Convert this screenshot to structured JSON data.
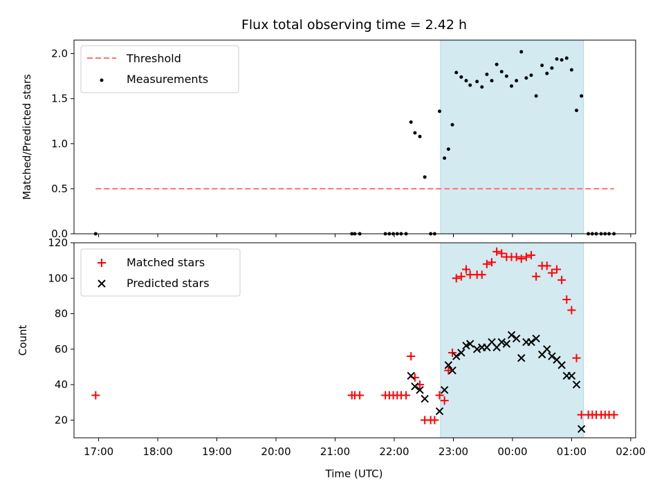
{
  "chart_data": [
    {
      "type": "scatter",
      "title": "Flux total observing time = 2.42 h",
      "xlabel": "",
      "ylabel": "Matched/Predicted stars",
      "xlim": [
        "16:35",
        "02:05"
      ],
      "ylim": [
        0,
        2.15
      ],
      "yticks": [
        "0.0",
        "0.5",
        "1.0",
        "1.5",
        "2.0"
      ],
      "shaded_region": [
        "22:47",
        "01:12"
      ],
      "shaded_color": "#d2eaf0",
      "legend_position": "top-left",
      "threshold": {
        "name": "Threshold",
        "value": 0.5,
        "x_range": [
          "16:57",
          "01:43"
        ],
        "color": "#ff7070"
      },
      "series": [
        {
          "name": "Measurements",
          "color": "#000000",
          "points": [
            [
              "16:57",
              0.0
            ],
            [
              "21:17",
              0.0
            ],
            [
              "21:20",
              0.0
            ],
            [
              "21:25",
              0.0
            ],
            [
              "21:51",
              0.0
            ],
            [
              "21:55",
              0.0
            ],
            [
              "21:59",
              0.0
            ],
            [
              "22:03",
              0.0
            ],
            [
              "22:07",
              0.0
            ],
            [
              "22:12",
              0.0
            ],
            [
              "22:17",
              1.24
            ],
            [
              "22:21",
              1.12
            ],
            [
              "22:26",
              1.08
            ],
            [
              "22:31",
              0.63
            ],
            [
              "22:37",
              0.0
            ],
            [
              "22:41",
              0.0
            ],
            [
              "22:46",
              1.36
            ],
            [
              "22:51",
              0.84
            ],
            [
              "22:55",
              0.94
            ],
            [
              "22:59",
              1.21
            ],
            [
              "23:03",
              1.79
            ],
            [
              "23:08",
              1.74
            ],
            [
              "23:13",
              1.7
            ],
            [
              "23:17",
              1.65
            ],
            [
              "23:24",
              1.69
            ],
            [
              "23:29",
              1.63
            ],
            [
              "23:34",
              1.77
            ],
            [
              "23:39",
              1.7
            ],
            [
              "23:44",
              1.88
            ],
            [
              "23:49",
              1.8
            ],
            [
              "23:54",
              1.75
            ],
            [
              "23:59",
              1.64
            ],
            [
              "00:04",
              1.7
            ],
            [
              "00:09",
              2.02
            ],
            [
              "00:14",
              1.73
            ],
            [
              "00:19",
              1.76
            ],
            [
              "00:24",
              1.53
            ],
            [
              "00:30",
              1.87
            ],
            [
              "00:35",
              1.78
            ],
            [
              "00:40",
              1.84
            ],
            [
              "00:45",
              1.94
            ],
            [
              "00:50",
              1.93
            ],
            [
              "00:55",
              1.95
            ],
            [
              "01:00",
              1.82
            ],
            [
              "01:05",
              1.37
            ],
            [
              "01:10",
              1.53
            ],
            [
              "01:17",
              0.0
            ],
            [
              "01:21",
              0.0
            ],
            [
              "01:25",
              0.0
            ],
            [
              "01:30",
              0.0
            ],
            [
              "01:34",
              0.0
            ],
            [
              "01:38",
              0.0
            ],
            [
              "01:43",
              0.0
            ]
          ]
        }
      ]
    },
    {
      "type": "scatter",
      "title": "",
      "xlabel": "Time (UTC)",
      "ylabel": "Count",
      "xlim": [
        "16:35",
        "02:05"
      ],
      "ylim": [
        10,
        120
      ],
      "yticks": [
        "20",
        "40",
        "60",
        "80",
        "100",
        "120"
      ],
      "xticks": [
        "17:00",
        "18:00",
        "19:00",
        "20:00",
        "21:00",
        "22:00",
        "23:00",
        "00:00",
        "01:00",
        "02:00"
      ],
      "shaded_region": [
        "22:47",
        "01:12"
      ],
      "shaded_color": "#d2eaf0",
      "legend_position": "top-left",
      "series": [
        {
          "name": "Matched stars",
          "color": "#ff0000",
          "marker": "plus",
          "points": [
            [
              "16:57",
              34
            ],
            [
              "21:17",
              34
            ],
            [
              "21:20",
              34
            ],
            [
              "21:25",
              34
            ],
            [
              "21:51",
              34
            ],
            [
              "21:55",
              34
            ],
            [
              "21:59",
              34
            ],
            [
              "22:03",
              34
            ],
            [
              "22:07",
              34
            ],
            [
              "22:12",
              34
            ],
            [
              "22:17",
              56
            ],
            [
              "22:21",
              44
            ],
            [
              "22:26",
              40
            ],
            [
              "22:31",
              20
            ],
            [
              "22:37",
              20
            ],
            [
              "22:41",
              20
            ],
            [
              "22:46",
              34
            ],
            [
              "22:51",
              31
            ],
            [
              "22:55",
              48
            ],
            [
              "22:59",
              58
            ],
            [
              "23:03",
              100
            ],
            [
              "23:08",
              101
            ],
            [
              "23:13",
              105
            ],
            [
              "23:17",
              102
            ],
            [
              "23:24",
              102
            ],
            [
              "23:29",
              102
            ],
            [
              "23:34",
              108
            ],
            [
              "23:39",
              109
            ],
            [
              "23:44",
              115
            ],
            [
              "23:49",
              114
            ],
            [
              "23:54",
              112
            ],
            [
              "23:59",
              112
            ],
            [
              "00:04",
              112
            ],
            [
              "00:09",
              111
            ],
            [
              "00:14",
              112
            ],
            [
              "00:19",
              113
            ],
            [
              "00:24",
              101
            ],
            [
              "00:30",
              107
            ],
            [
              "00:35",
              107
            ],
            [
              "00:40",
              103
            ],
            [
              "00:45",
              105
            ],
            [
              "00:50",
              99
            ],
            [
              "00:55",
              88
            ],
            [
              "01:00",
              82
            ],
            [
              "01:05",
              55
            ],
            [
              "01:10",
              23
            ],
            [
              "01:17",
              23
            ],
            [
              "01:21",
              23
            ],
            [
              "01:25",
              23
            ],
            [
              "01:30",
              23
            ],
            [
              "01:34",
              23
            ],
            [
              "01:38",
              23
            ],
            [
              "01:43",
              23
            ]
          ]
        },
        {
          "name": "Predicted stars",
          "color": "#000000",
          "marker": "x",
          "points": [
            [
              "22:17",
              45
            ],
            [
              "22:21",
              39
            ],
            [
              "22:26",
              37
            ],
            [
              "22:31",
              32
            ],
            [
              "22:46",
              25
            ],
            [
              "22:51",
              37
            ],
            [
              "22:55",
              51
            ],
            [
              "22:59",
              48
            ],
            [
              "23:03",
              56
            ],
            [
              "23:08",
              58
            ],
            [
              "23:13",
              62
            ],
            [
              "23:17",
              63
            ],
            [
              "23:24",
              60
            ],
            [
              "23:29",
              61
            ],
            [
              "23:34",
              61
            ],
            [
              "23:39",
              64
            ],
            [
              "23:44",
              61
            ],
            [
              "23:49",
              64
            ],
            [
              "23:54",
              63
            ],
            [
              "23:59",
              68
            ],
            [
              "00:04",
              66
            ],
            [
              "00:09",
              55
            ],
            [
              "00:14",
              64
            ],
            [
              "00:19",
              64
            ],
            [
              "00:24",
              66
            ],
            [
              "00:30",
              57
            ],
            [
              "00:35",
              60
            ],
            [
              "00:40",
              56
            ],
            [
              "00:45",
              54
            ],
            [
              "00:50",
              51
            ],
            [
              "00:55",
              45
            ],
            [
              "01:00",
              45
            ],
            [
              "01:05",
              40
            ],
            [
              "01:10",
              15
            ]
          ]
        }
      ]
    }
  ]
}
